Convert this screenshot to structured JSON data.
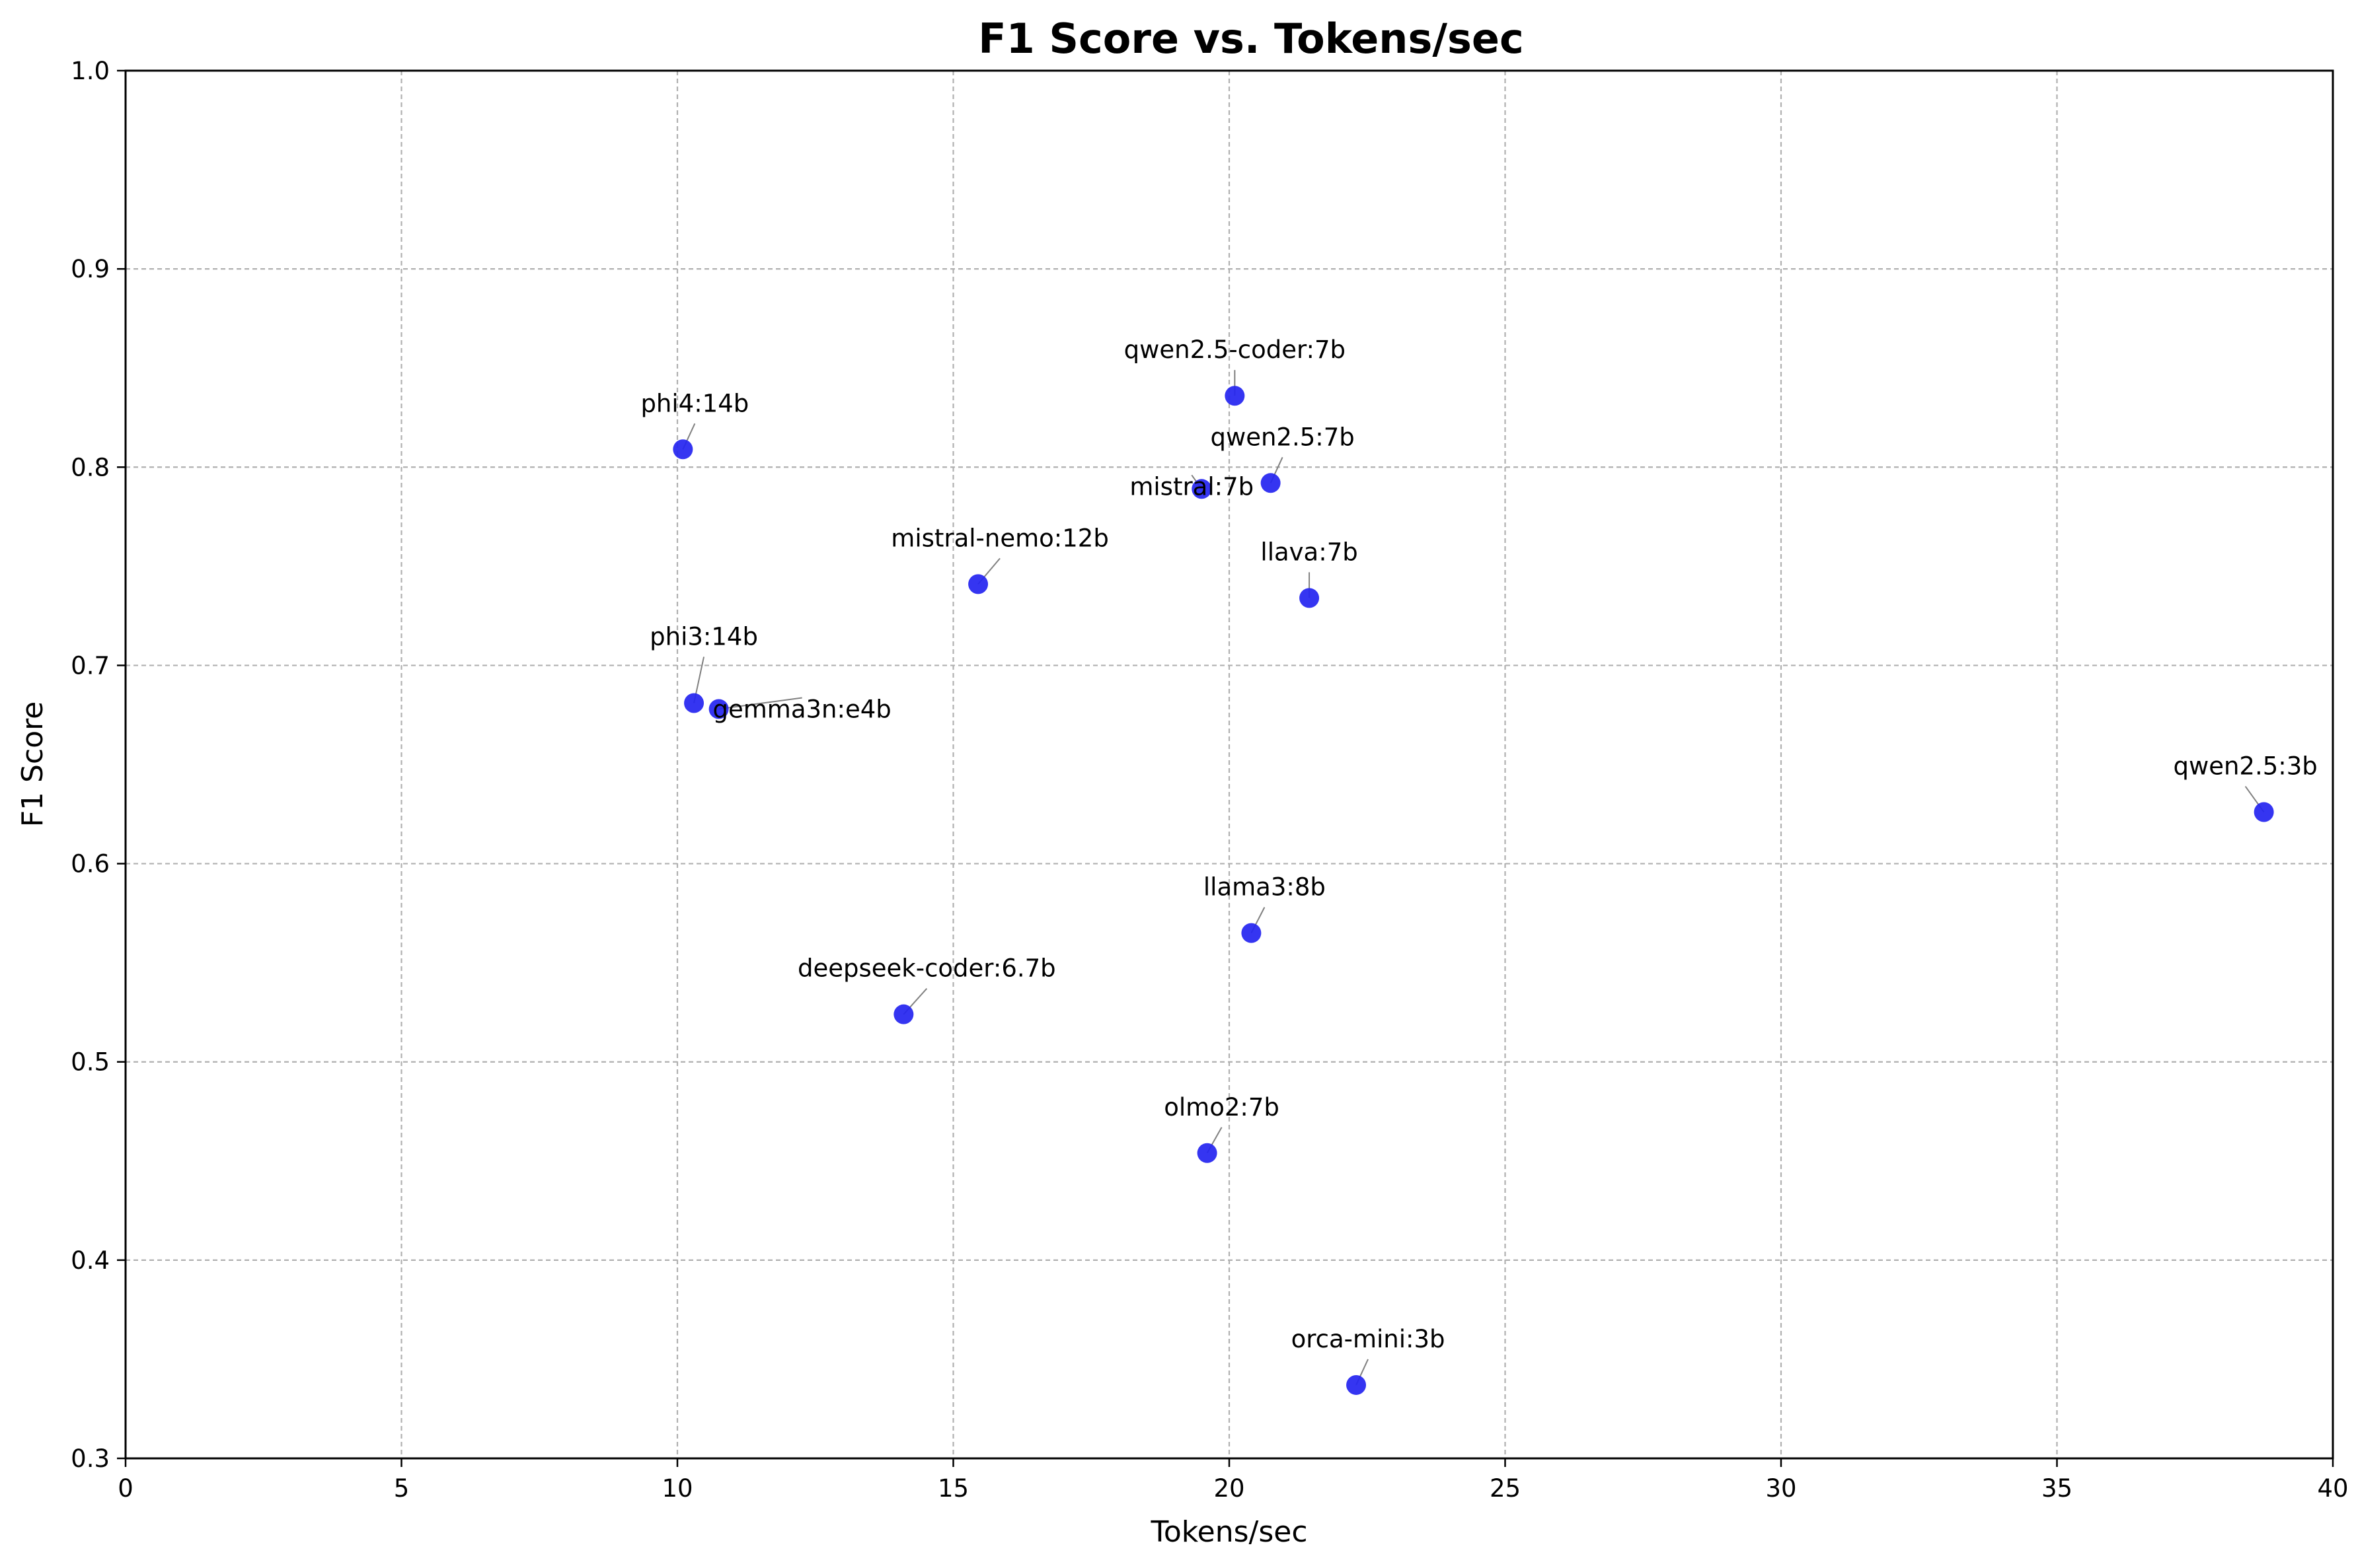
{
  "chart_data": {
    "type": "scatter",
    "title": "F1 Score vs. Tokens/sec",
    "xlabel": "Tokens/sec",
    "ylabel": "F1 Score",
    "xlim": [
      0,
      40
    ],
    "ylim": [
      0.3,
      1.0
    ],
    "xticks": [
      "0",
      "5",
      "10",
      "15",
      "20",
      "25",
      "30",
      "35",
      "40"
    ],
    "yticks": [
      "0.3",
      "0.4",
      "0.5",
      "0.6",
      "0.7",
      "0.8",
      "0.9",
      "1.0"
    ],
    "grid": true,
    "marker_color": "#2626f0",
    "points": [
      {
        "label": "qwen2.5-coder:7b",
        "x": 20.1,
        "y": 0.836
      },
      {
        "label": "phi4:14b",
        "x": 10.1,
        "y": 0.809
      },
      {
        "label": "qwen2.5:7b",
        "x": 20.75,
        "y": 0.792
      },
      {
        "label": "mistral:7b",
        "x": 19.5,
        "y": 0.789
      },
      {
        "label": "mistral-nemo:12b",
        "x": 15.45,
        "y": 0.741
      },
      {
        "label": "llava:7b",
        "x": 21.45,
        "y": 0.734
      },
      {
        "label": "phi3:14b",
        "x": 10.3,
        "y": 0.681
      },
      {
        "label": "gemma3n:e4b",
        "x": 10.75,
        "y": 0.678
      },
      {
        "label": "qwen2.5:3b",
        "x": 38.75,
        "y": 0.626
      },
      {
        "label": "llama3:8b",
        "x": 20.4,
        "y": 0.565
      },
      {
        "label": "deepseek-coder:6.7b",
        "x": 14.1,
        "y": 0.524
      },
      {
        "label": "olmo2:7b",
        "x": 19.6,
        "y": 0.454
      },
      {
        "label": "orca-mini:3b",
        "x": 22.3,
        "y": 0.337
      }
    ]
  }
}
